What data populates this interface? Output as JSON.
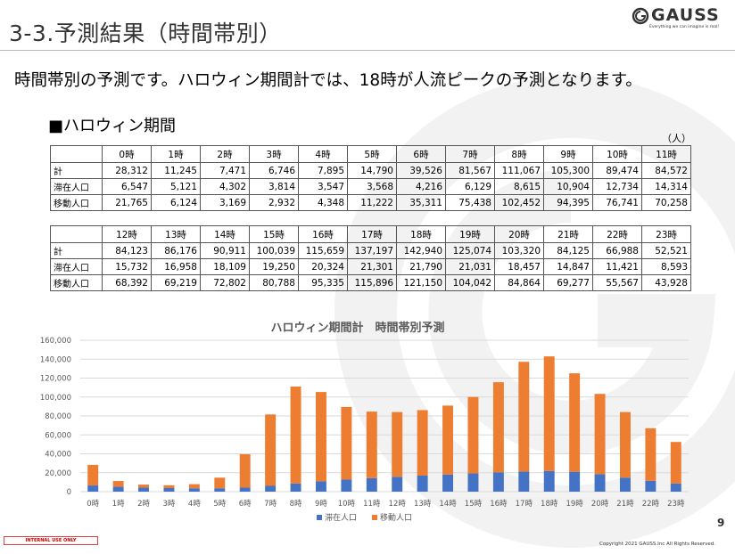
{
  "header": {
    "title": "3-3.予測結果（時間帯別）",
    "logo_text": "GAUSS",
    "logo_tagline": "Everything we can imagine is real!"
  },
  "lead_text": "時間帯別の予測です。ハロウィン期間計では、18時が人流ピークの予測となります。",
  "section_title": "■ハロウィン期間",
  "unit_label": "（人）",
  "table_labels": {
    "total": "計",
    "stay": "滞在人口",
    "move": "移動人口"
  },
  "table1": {
    "hours": [
      "0時",
      "1時",
      "2時",
      "3時",
      "4時",
      "5時",
      "6時",
      "7時",
      "8時",
      "9時",
      "10時",
      "11時"
    ],
    "total": [
      "28,312",
      "11,245",
      "7,471",
      "6,746",
      "7,895",
      "14,790",
      "39,526",
      "81,567",
      "111,067",
      "105,300",
      "89,474",
      "84,572"
    ],
    "stay": [
      "6,547",
      "5,121",
      "4,302",
      "3,814",
      "3,547",
      "3,568",
      "4,216",
      "6,129",
      "8,615",
      "10,904",
      "12,734",
      "14,314"
    ],
    "move": [
      "21,765",
      "6,124",
      "3,169",
      "2,932",
      "4,348",
      "11,222",
      "35,311",
      "75,438",
      "102,452",
      "94,395",
      "76,741",
      "70,258"
    ]
  },
  "table2": {
    "hours": [
      "12時",
      "13時",
      "14時",
      "15時",
      "16時",
      "17時",
      "18時",
      "19時",
      "20時",
      "21時",
      "22時",
      "23時"
    ],
    "total": [
      "84,123",
      "86,176",
      "90,911",
      "100,039",
      "115,659",
      "137,197",
      "142,940",
      "125,074",
      "103,320",
      "84,125",
      "66,988",
      "52,521"
    ],
    "stay": [
      "15,732",
      "16,958",
      "18,109",
      "19,250",
      "20,324",
      "21,301",
      "21,790",
      "21,031",
      "18,457",
      "14,847",
      "11,421",
      "8,593"
    ],
    "move": [
      "68,392",
      "69,219",
      "72,802",
      "80,788",
      "95,335",
      "115,896",
      "121,150",
      "104,042",
      "84,864",
      "69,277",
      "55,567",
      "43,928"
    ]
  },
  "chart_data": {
    "type": "bar",
    "stacked": true,
    "title": "ハロウィン期間計　時間帯別予測",
    "categories": [
      "0時",
      "1時",
      "2時",
      "3時",
      "4時",
      "5時",
      "6時",
      "7時",
      "8時",
      "9時",
      "10時",
      "11時",
      "12時",
      "13時",
      "14時",
      "15時",
      "16時",
      "17時",
      "18時",
      "19時",
      "20時",
      "21時",
      "22時",
      "23時"
    ],
    "series": [
      {
        "name": "滞在人口",
        "color": "#4472C4",
        "values": [
          6547,
          5121,
          4302,
          3814,
          3547,
          3568,
          4216,
          6129,
          8615,
          10904,
          12734,
          14314,
          15732,
          16958,
          18109,
          19250,
          20324,
          21301,
          21790,
          21031,
          18457,
          14847,
          11421,
          8593
        ]
      },
      {
        "name": "移動人口",
        "color": "#ED7D31",
        "values": [
          21765,
          6124,
          3169,
          2932,
          4348,
          11222,
          35311,
          75438,
          102452,
          94395,
          76741,
          70258,
          68392,
          69219,
          72802,
          80788,
          95335,
          115896,
          121150,
          104042,
          84864,
          69277,
          55567,
          43928
        ]
      }
    ],
    "ylim": [
      0,
      160000
    ],
    "yticks": [
      "0",
      "20,000",
      "40,000",
      "60,000",
      "80,000",
      "100,000",
      "120,000",
      "140,000",
      "160,000"
    ],
    "gridlines": true,
    "legend_position": "bottom"
  },
  "footer": {
    "page_number": "9",
    "internal_label": "INTERNAL USE ONLY",
    "copyright": "Copyright  2021 GAUSS.Inc All Rights Reserved."
  }
}
